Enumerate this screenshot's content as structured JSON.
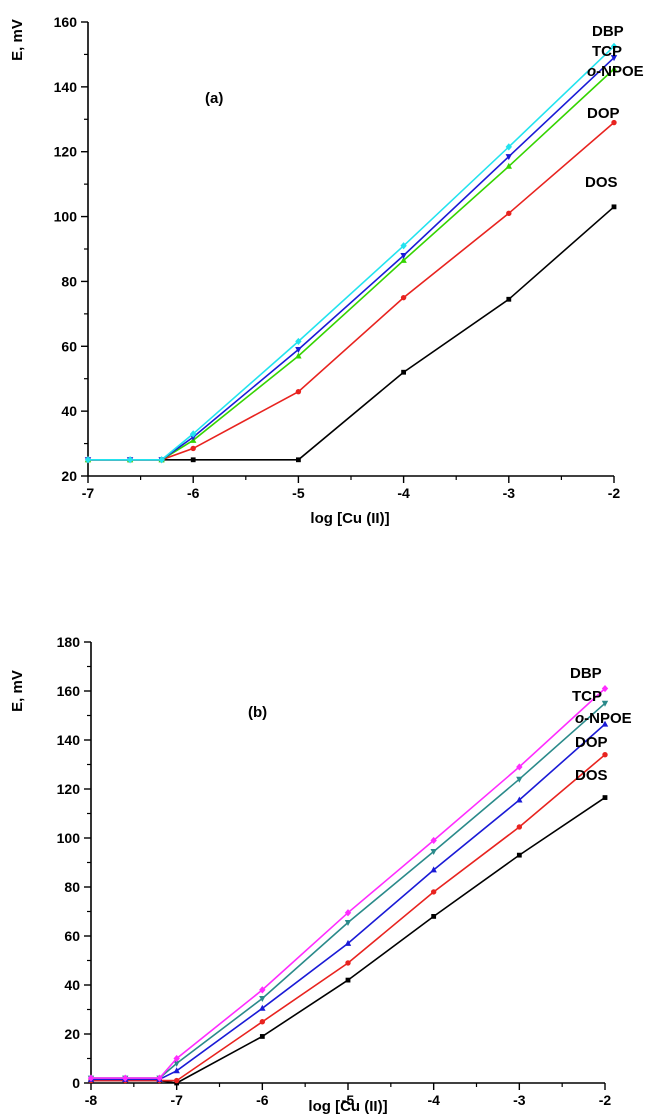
{
  "chart_data": [
    {
      "type": "line",
      "panel_label": "(a)",
      "xlabel": "log [Cu (II)]",
      "ylabel": "E, mV",
      "xlim": [
        -7,
        -2
      ],
      "ylim": [
        20,
        160
      ],
      "xticks": [
        -7,
        -6,
        -5,
        -4,
        -3,
        -2
      ],
      "yticks": [
        20,
        40,
        60,
        80,
        100,
        120,
        140,
        160
      ],
      "series": [
        {
          "name": "DOS",
          "color": "#000000",
          "marker": "square",
          "points": [
            [
              -7,
              25
            ],
            [
              -6.6,
              25
            ],
            [
              -6.3,
              25
            ],
            [
              -6,
              25
            ],
            [
              -5,
              25
            ],
            [
              -4,
              52
            ],
            [
              -3,
              74.5
            ],
            [
              -2,
              103
            ]
          ]
        },
        {
          "name": "DOP",
          "color": "#e8231f",
          "marker": "circle",
          "points": [
            [
              -7,
              25
            ],
            [
              -6.6,
              25
            ],
            [
              -6.3,
              25
            ],
            [
              -6,
              28.5
            ],
            [
              -5,
              46
            ],
            [
              -4,
              75
            ],
            [
              -3,
              101
            ],
            [
              -2,
              129
            ]
          ]
        },
        {
          "name": "o-NPOE",
          "color": "#35d400",
          "marker": "triangle-up",
          "points": [
            [
              -7,
              25
            ],
            [
              -6.6,
              25
            ],
            [
              -6.3,
              25
            ],
            [
              -6,
              31
            ],
            [
              -5,
              57
            ],
            [
              -4,
              86.5
            ],
            [
              -3,
              115.5
            ],
            [
              -2,
              145.5
            ]
          ]
        },
        {
          "name": "TCP",
          "color": "#1a1ad6",
          "marker": "triangle-down",
          "points": [
            [
              -7,
              25
            ],
            [
              -6.6,
              25
            ],
            [
              -6.3,
              25
            ],
            [
              -6,
              32
            ],
            [
              -5,
              59
            ],
            [
              -4,
              88
            ],
            [
              -3,
              118.5
            ],
            [
              -2,
              149
            ]
          ]
        },
        {
          "name": "DBP",
          "color": "#22e3ef",
          "marker": "diamond",
          "points": [
            [
              -7,
              25
            ],
            [
              -6.6,
              25
            ],
            [
              -6.3,
              25
            ],
            [
              -6,
              33
            ],
            [
              -5,
              61.5
            ],
            [
              -4,
              91
            ],
            [
              -3,
              121.5
            ],
            [
              -2,
              152.5
            ]
          ]
        }
      ]
    },
    {
      "type": "line",
      "panel_label": "(b)",
      "xlabel": "log [Cu (II)]",
      "ylabel": "E, mV",
      "xlim": [
        -8,
        -2
      ],
      "ylim": [
        0,
        180
      ],
      "xticks": [
        -8,
        -7,
        -6,
        -5,
        -4,
        -3,
        -2
      ],
      "yticks": [
        0,
        20,
        40,
        60,
        80,
        100,
        120,
        140,
        160,
        180
      ],
      "series": [
        {
          "name": "DOS",
          "color": "#000000",
          "marker": "square",
          "points": [
            [
              -8,
              1
            ],
            [
              -7.6,
              1
            ],
            [
              -7.2,
              1
            ],
            [
              -7,
              0
            ],
            [
              -6,
              19
            ],
            [
              -5,
              42
            ],
            [
              -4,
              68
            ],
            [
              -3,
              93
            ],
            [
              -2,
              116.5
            ]
          ]
        },
        {
          "name": "DOP",
          "color": "#e8231f",
          "marker": "circle",
          "points": [
            [
              -8,
              1
            ],
            [
              -7.6,
              1
            ],
            [
              -7.2,
              1
            ],
            [
              -7,
              1
            ],
            [
              -6,
              25
            ],
            [
              -5,
              49
            ],
            [
              -4,
              78
            ],
            [
              -3,
              104.5
            ],
            [
              -2,
              134
            ]
          ]
        },
        {
          "name": "o-NPOE",
          "color": "#1a1ad6",
          "marker": "triangle-up",
          "points": [
            [
              -8,
              1.5
            ],
            [
              -7.6,
              1.5
            ],
            [
              -7.2,
              1.5
            ],
            [
              -7,
              5
            ],
            [
              -6,
              30.5
            ],
            [
              -5,
              57
            ],
            [
              -4,
              87
            ],
            [
              -3,
              115.5
            ],
            [
              -2,
              146.5
            ]
          ]
        },
        {
          "name": "TCP",
          "color": "#2a8a8a",
          "marker": "triangle-down",
          "points": [
            [
              -8,
              2
            ],
            [
              -7.6,
              2
            ],
            [
              -7.2,
              2
            ],
            [
              -7,
              8
            ],
            [
              -6,
              34.5
            ],
            [
              -5,
              65.5
            ],
            [
              -4,
              94.5
            ],
            [
              -3,
              124
            ],
            [
              -2,
              155
            ]
          ]
        },
        {
          "name": "DBP",
          "color": "#ff2cff",
          "marker": "diamond",
          "points": [
            [
              -8,
              2
            ],
            [
              -7.6,
              2
            ],
            [
              -7.2,
              2
            ],
            [
              -7,
              10
            ],
            [
              -6,
              38
            ],
            [
              -5,
              69.5
            ],
            [
              -4,
              99
            ],
            [
              -3,
              129
            ],
            [
              -2,
              161
            ]
          ]
        }
      ]
    }
  ]
}
